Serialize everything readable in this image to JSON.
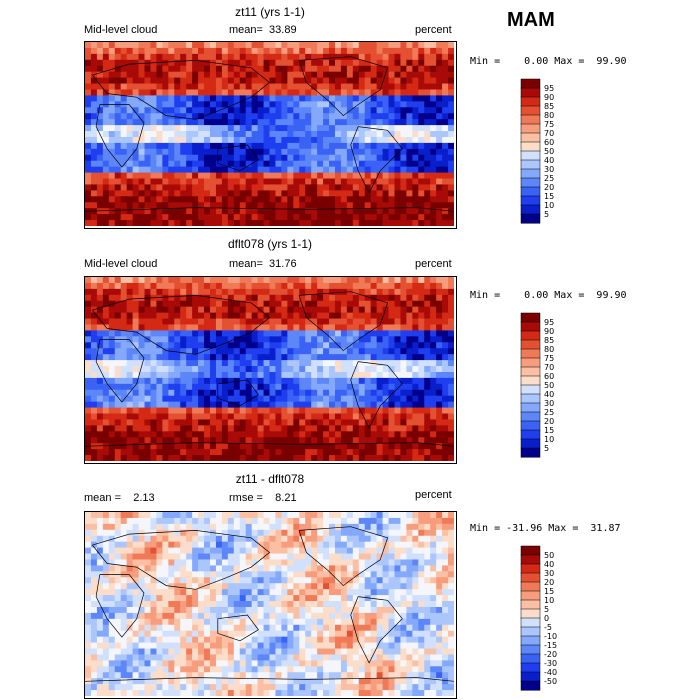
{
  "season": "MAM",
  "colors": {
    "seq_scale": [
      "#00008b",
      "#0a1fcc",
      "#1e3ef0",
      "#3a63f5",
      "#5d86f8",
      "#84a8fb",
      "#abc6fc",
      "#d0e0fd",
      "#f4f6fb",
      "#fbddc9",
      "#fbbfa4",
      "#f79d7d",
      "#f07a57",
      "#e45132",
      "#d42a15",
      "#a80a08",
      "#7a0000"
    ],
    "div_scale": [
      "#00008b",
      "#0a1fcc",
      "#1e3ef0",
      "#3a63f5",
      "#5d86f8",
      "#84a8fb",
      "#abc6fc",
      "#d0e0fd",
      "#f4f6fb",
      "#fbddc9",
      "#fbbfa4",
      "#f79d7d",
      "#f07a57",
      "#e45132",
      "#d42a15",
      "#a80a08",
      "#7a0000"
    ]
  },
  "panels": [
    {
      "title": "zt11 (yrs 1-1)",
      "left_label": "Mid-level cloud",
      "mean_text": "mean=  33.89",
      "units": "percent",
      "minmax": "Min =    0.00 Max =  99.90",
      "scale": "seq",
      "levels": [
        "95",
        "90",
        "85",
        "80",
        "75",
        "70",
        "60",
        "50",
        "40",
        "30",
        "25",
        "20",
        "15",
        "10",
        "5"
      ]
    },
    {
      "title": "dflt078 (yrs 1-1)",
      "left_label": "Mid-level cloud",
      "mean_text": "mean=  31.76",
      "units": "percent",
      "minmax": "Min =    0.00 Max =  99.90",
      "scale": "seq",
      "levels": [
        "95",
        "90",
        "85",
        "80",
        "75",
        "70",
        "60",
        "50",
        "40",
        "30",
        "25",
        "20",
        "15",
        "10",
        "5"
      ]
    },
    {
      "title": "zt11 - dflt078",
      "left_label": "mean =    2.13",
      "mean_text": "rmse =    8.21",
      "units": "percent",
      "minmax": "Min = -31.96 Max =  31.87",
      "scale": "div",
      "levels": [
        "50",
        "40",
        "30",
        "20",
        "15",
        "10",
        "5",
        "0",
        "-5",
        "-10",
        "-15",
        "-20",
        "-30",
        "-40",
        "-50"
      ]
    }
  ]
}
